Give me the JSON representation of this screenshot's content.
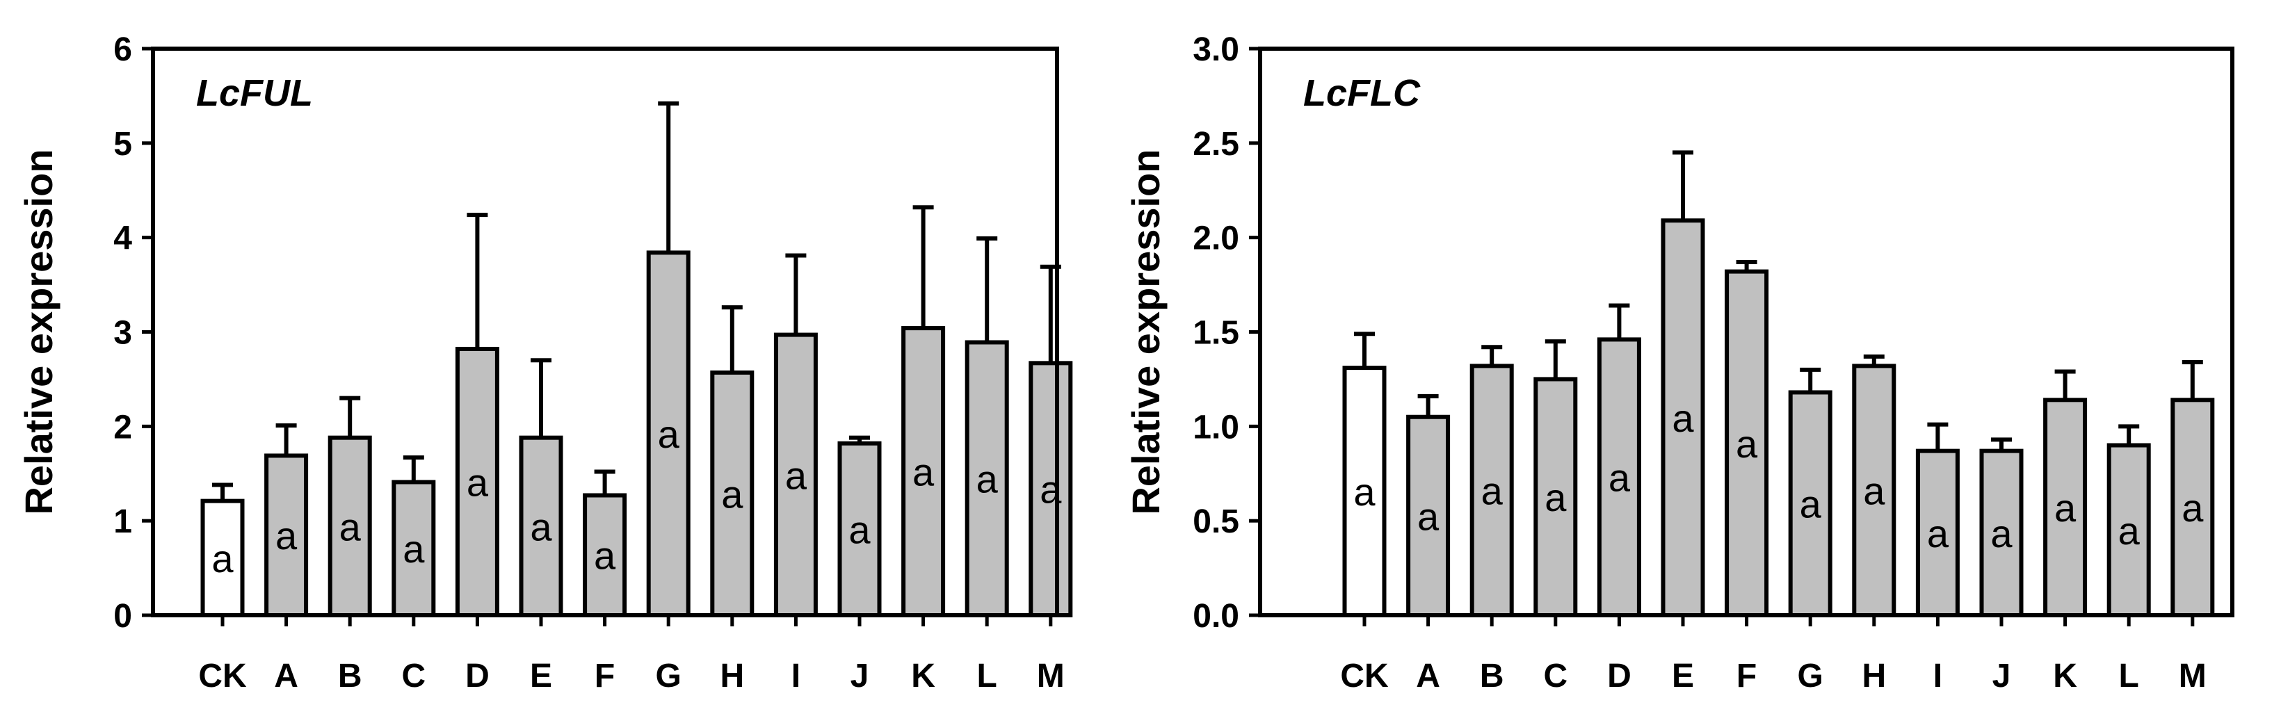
{
  "chart_data": [
    {
      "type": "bar",
      "title": "LcFUL",
      "xlabel": "",
      "ylabel": "Relative expression",
      "ylim": [
        0,
        6
      ],
      "yticks": [
        "0",
        "1",
        "2",
        "3",
        "4",
        "5",
        "6"
      ],
      "categories": [
        "CK",
        "A",
        "B",
        "C",
        "D",
        "E",
        "F",
        "G",
        "H",
        "I",
        "J",
        "K",
        "L",
        "M"
      ],
      "values": [
        1.21,
        1.69,
        1.88,
        1.41,
        2.82,
        1.88,
        1.27,
        3.84,
        2.57,
        2.97,
        1.82,
        3.04,
        2.89,
        2.67
      ],
      "errors": [
        0.17,
        0.32,
        0.42,
        0.26,
        1.42,
        0.82,
        0.25,
        1.58,
        0.69,
        0.84,
        0.06,
        1.28,
        1.1,
        1.02
      ],
      "significance": [
        "a",
        "a",
        "a",
        "a",
        "a",
        "a",
        "a",
        "a",
        "a",
        "a",
        "a",
        "a",
        "a",
        "a"
      ],
      "bar_colors": [
        "#ffffff",
        "#c0c0c0",
        "#c0c0c0",
        "#c0c0c0",
        "#c0c0c0",
        "#c0c0c0",
        "#c0c0c0",
        "#c0c0c0",
        "#c0c0c0",
        "#c0c0c0",
        "#c0c0c0",
        "#c0c0c0",
        "#c0c0c0",
        "#c0c0c0"
      ],
      "grid": false
    },
    {
      "type": "bar",
      "title": "LcFLC",
      "xlabel": "",
      "ylabel": "Relative expression",
      "ylim": [
        0,
        3.0
      ],
      "yticks": [
        "0.0",
        "0.5",
        "1.0",
        "1.5",
        "2.0",
        "2.5",
        "3.0"
      ],
      "categories": [
        "CK",
        "A",
        "B",
        "C",
        "D",
        "E",
        "F",
        "G",
        "H",
        "I",
        "J",
        "K",
        "L",
        "M"
      ],
      "values": [
        1.31,
        1.05,
        1.32,
        1.25,
        1.46,
        2.09,
        1.82,
        1.18,
        1.32,
        0.87,
        0.87,
        1.14,
        0.9,
        1.14
      ],
      "errors": [
        0.18,
        0.11,
        0.1,
        0.2,
        0.18,
        0.36,
        0.05,
        0.12,
        0.05,
        0.14,
        0.06,
        0.15,
        0.1,
        0.2
      ],
      "significance": [
        "a",
        "a",
        "a",
        "a",
        "a",
        "a",
        "a",
        "a",
        "a",
        "a",
        "a",
        "a",
        "a",
        "a"
      ],
      "bar_colors": [
        "#ffffff",
        "#c0c0c0",
        "#c0c0c0",
        "#c0c0c0",
        "#c0c0c0",
        "#c0c0c0",
        "#c0c0c0",
        "#c0c0c0",
        "#c0c0c0",
        "#c0c0c0",
        "#c0c0c0",
        "#c0c0c0",
        "#c0c0c0",
        "#c0c0c0"
      ],
      "grid": false
    }
  ]
}
